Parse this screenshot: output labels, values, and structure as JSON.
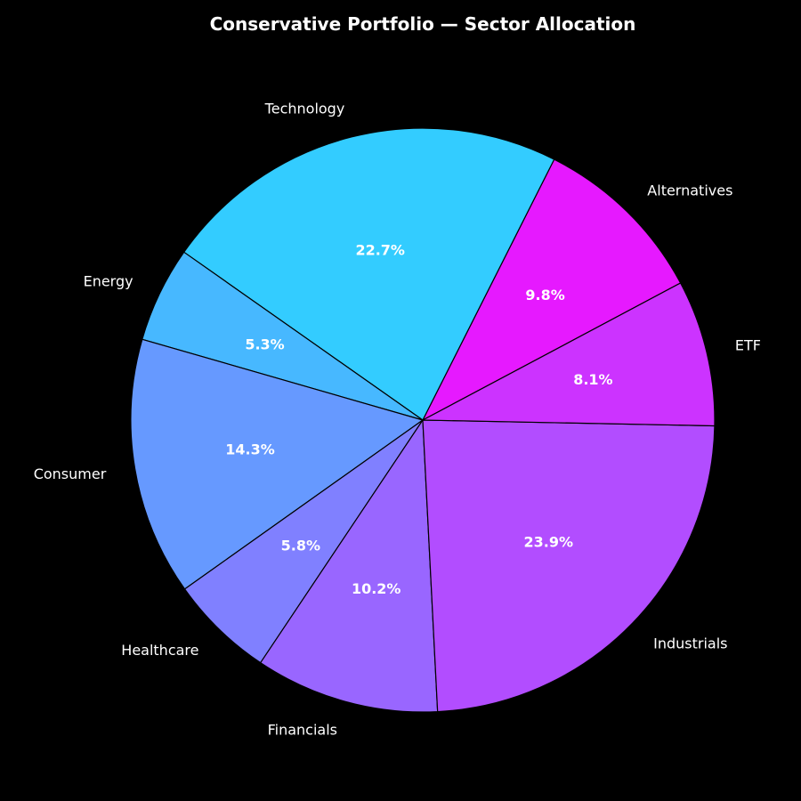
{
  "chart_data": {
    "type": "pie",
    "title": "Conservative Portfolio — Sector Allocation",
    "start_angle_deg": 28,
    "direction": "counterclockwise",
    "edge_color": "#000000",
    "background": "#000000",
    "text_color": "#ffffff",
    "slices": [
      {
        "label": "Alternatives",
        "value": 9.8,
        "pct_label": "9.8%",
        "color": "#e619ff"
      },
      {
        "label": "Technology",
        "value": 22.7,
        "pct_label": "22.7%",
        "color": "#33ccff"
      },
      {
        "label": "Energy",
        "value": 5.3,
        "pct_label": "5.3%",
        "color": "#47b8ff"
      },
      {
        "label": "Consumer",
        "value": 14.3,
        "pct_label": "14.3%",
        "color": "#6699ff"
      },
      {
        "label": "Healthcare",
        "value": 5.8,
        "pct_label": "5.8%",
        "color": "#8080ff"
      },
      {
        "label": "Financials",
        "value": 10.2,
        "pct_label": "10.2%",
        "color": "#9966ff"
      },
      {
        "label": "Industrials",
        "value": 23.9,
        "pct_label": "23.9%",
        "color": "#b24dff"
      },
      {
        "label": "ETF",
        "value": 8.1,
        "pct_label": "8.1%",
        "color": "#cc33ff"
      }
    ]
  }
}
